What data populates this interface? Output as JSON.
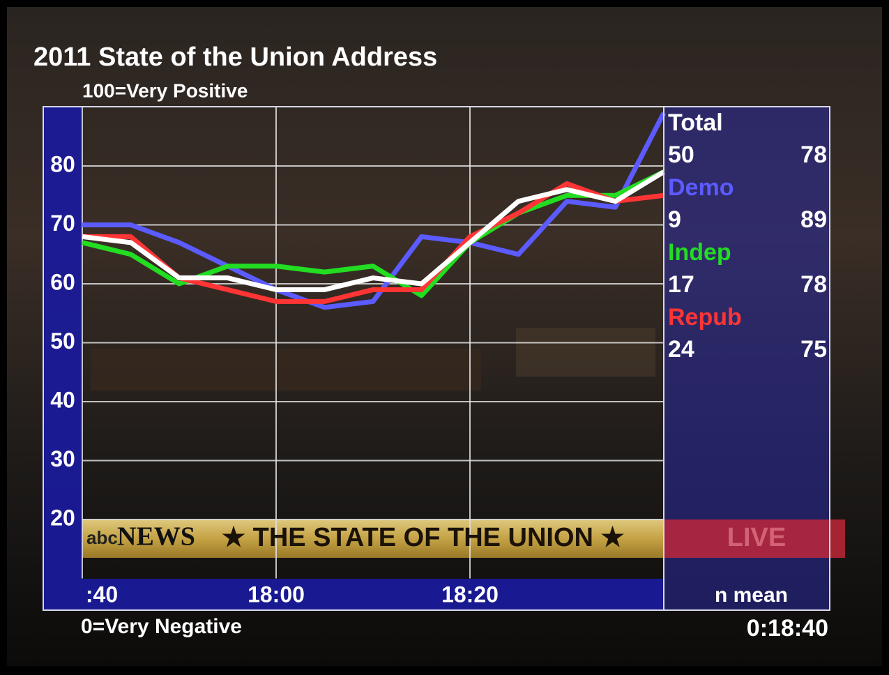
{
  "chart_data": {
    "type": "line",
    "title": "2011 State of the Union Address",
    "y_top_label": "100=Very Positive",
    "y_bottom_label": "0=Very Negative",
    "elapsed": "0:18:40",
    "stats_header": "n mean",
    "x": [
      1060,
      1065,
      1070,
      1075,
      1080,
      1085,
      1090,
      1095,
      1100,
      1105,
      1110,
      1115,
      1120
    ],
    "xlim": [
      1060,
      1120
    ],
    "xticks": [
      {
        "value": 1060,
        "label": ":40"
      },
      {
        "value": 1080,
        "label": "18:00"
      },
      {
        "value": 1100,
        "label": "18:20"
      }
    ],
    "ylim": [
      10,
      90
    ],
    "yticks": [
      20,
      30,
      40,
      50,
      60,
      70,
      80
    ],
    "grid": true,
    "series": [
      {
        "name": "Demo",
        "color": "#5b5bff",
        "n": 9,
        "mean": 89,
        "values": [
          70,
          70,
          67,
          63,
          59,
          56,
          57,
          68,
          67,
          65,
          74,
          73,
          89
        ]
      },
      {
        "name": "Indep",
        "color": "#22dd22",
        "n": 17,
        "mean": 78,
        "values": [
          67,
          65,
          60,
          63,
          63,
          62,
          63,
          58,
          67,
          72,
          75,
          75,
          79
        ]
      },
      {
        "name": "Repub",
        "color": "#ff3535",
        "n": 24,
        "mean": 75,
        "values": [
          68,
          68,
          61,
          59,
          57,
          57,
          59,
          59,
          68,
          72,
          77,
          74,
          75
        ]
      },
      {
        "name": "Total",
        "color": "#ffffff",
        "n": 50,
        "mean": 78,
        "values": [
          68,
          67,
          61,
          61,
          59,
          59,
          61,
          60,
          67,
          74,
          76,
          74,
          79
        ]
      }
    ]
  },
  "ticker": {
    "logo": "abc",
    "brand": "NEWS",
    "text": "★ THE STATE OF THE UNION ★",
    "live": "LIVE"
  }
}
